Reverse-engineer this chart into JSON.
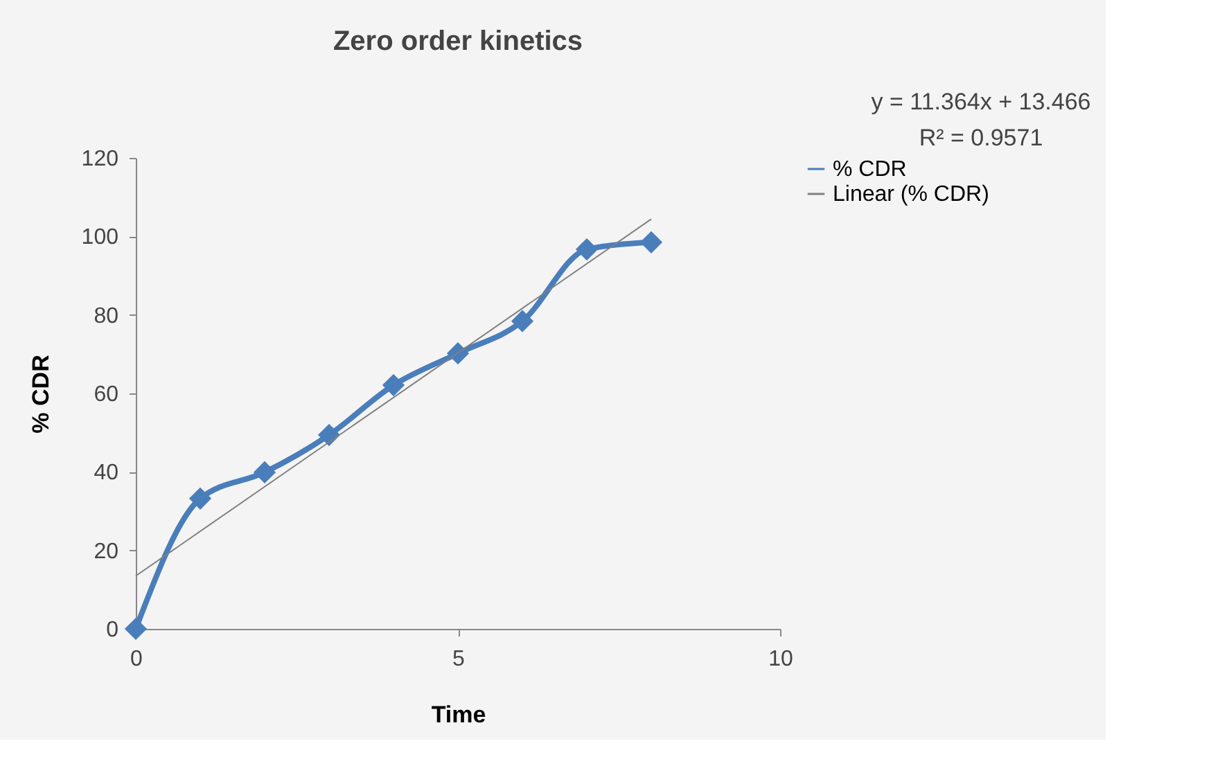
{
  "chart_data": {
    "type": "line",
    "title": "Zero order kinetics",
    "xlabel": "Time",
    "ylabel": "% CDR",
    "x": [
      0,
      1,
      2,
      3,
      4,
      5,
      6,
      7,
      8
    ],
    "series": [
      {
        "name": "% CDR",
        "color": "#4a7ebb",
        "values": [
          0,
          33.2,
          39.9,
          49.4,
          62.1,
          70.2,
          78.4,
          96.7,
          98.5
        ],
        "marker": "diamond"
      },
      {
        "name": "Linear (% CDR)",
        "color": "#808080",
        "type": "line",
        "x": [
          0,
          8
        ],
        "values": [
          13.5,
          104.4
        ],
        "marker": "none"
      }
    ],
    "annotations": [
      "y = 11.364x + 13.466",
      "R² = 0.9571"
    ],
    "xlim": [
      0,
      10
    ],
    "xticks": [
      0,
      5,
      10
    ],
    "ylim": [
      0,
      120
    ],
    "yticks": [
      0,
      20,
      40,
      60,
      80,
      100,
      120
    ],
    "grid": false,
    "legend": "right"
  }
}
